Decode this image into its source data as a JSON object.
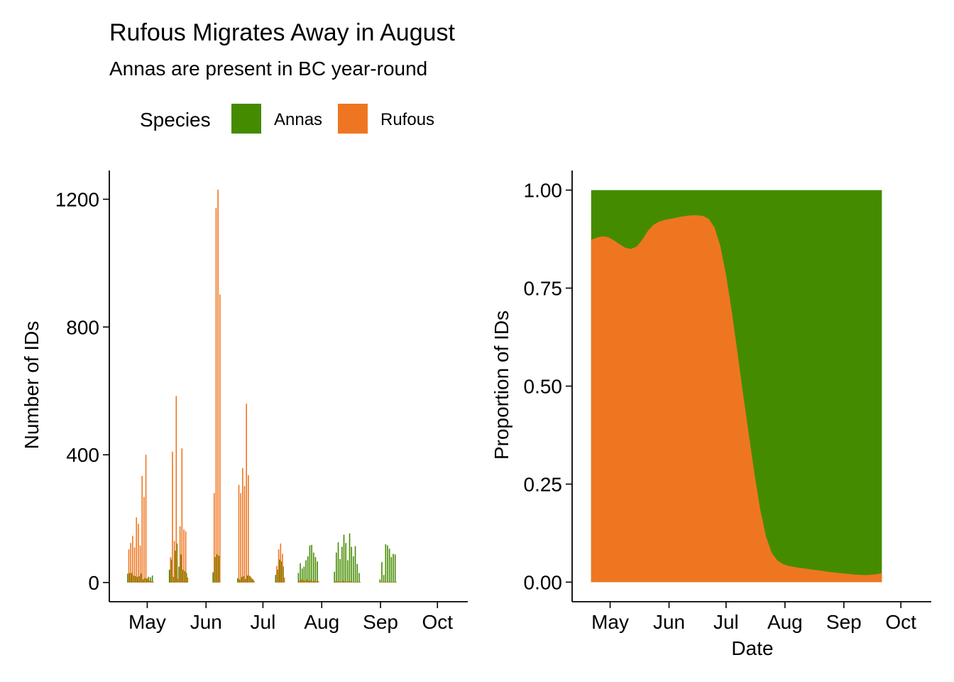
{
  "header": {
    "title": "Rufous Migrates Away in August",
    "subtitle": "Annas are present in BC year-round"
  },
  "legend": {
    "title": "Species",
    "items": [
      {
        "label": "Annas",
        "color": "#458B00"
      },
      {
        "label": "Rufous",
        "color": "#EE7621"
      }
    ]
  },
  "colors": {
    "annas": "#458B00",
    "rufous": "#EE7621",
    "axis": "#000000"
  },
  "chart_data": [
    {
      "type": "bar",
      "ylabel": "Number of IDs",
      "xlabel": "",
      "x_ticks": [
        "May",
        "Jun",
        "Jul",
        "Aug",
        "Sep",
        "Oct"
      ],
      "x_range": [
        "2023-04-11",
        "2023-10-17"
      ],
      "ylim": [
        -60,
        1290
      ],
      "y_ticks": [
        0,
        400,
        800,
        1200
      ],
      "grid": false,
      "legend": "top",
      "series": [
        {
          "name": "Annas",
          "points": [
            [
              "2023-04-21",
              28
            ],
            [
              "2023-04-22",
              30
            ],
            [
              "2023-04-23",
              30
            ],
            [
              "2023-04-24",
              22
            ],
            [
              "2023-04-25",
              20
            ],
            [
              "2023-04-26",
              18
            ],
            [
              "2023-04-27",
              20
            ],
            [
              "2023-04-28",
              28
            ],
            [
              "2023-04-29",
              10
            ],
            [
              "2023-04-30",
              14
            ],
            [
              "2023-05-01",
              12
            ],
            [
              "2023-05-02",
              18
            ],
            [
              "2023-05-03",
              16
            ],
            [
              "2023-05-04",
              22
            ],
            [
              "2023-05-13",
              40
            ],
            [
              "2023-05-14",
              72
            ],
            [
              "2023-05-15",
              18
            ],
            [
              "2023-05-16",
              100
            ],
            [
              "2023-05-17",
              122
            ],
            [
              "2023-05-18",
              50
            ],
            [
              "2023-05-19",
              88
            ],
            [
              "2023-05-20",
              40
            ],
            [
              "2023-05-21",
              36
            ],
            [
              "2023-05-22",
              30
            ],
            [
              "2023-06-05",
              32
            ],
            [
              "2023-06-06",
              80
            ],
            [
              "2023-06-07",
              88
            ],
            [
              "2023-06-08",
              84
            ],
            [
              "2023-06-18",
              14
            ],
            [
              "2023-06-19",
              10
            ],
            [
              "2023-06-20",
              18
            ],
            [
              "2023-06-21",
              20
            ],
            [
              "2023-06-22",
              12
            ],
            [
              "2023-06-23",
              22
            ],
            [
              "2023-06-24",
              22
            ],
            [
              "2023-06-25",
              16
            ],
            [
              "2023-06-26",
              10
            ],
            [
              "2023-07-08",
              24
            ],
            [
              "2023-07-09",
              40
            ],
            [
              "2023-07-10",
              72
            ],
            [
              "2023-07-11",
              66
            ],
            [
              "2023-07-12",
              50
            ],
            [
              "2023-07-20",
              30
            ],
            [
              "2023-07-21",
              60
            ],
            [
              "2023-07-22",
              44
            ],
            [
              "2023-07-23",
              50
            ],
            [
              "2023-07-24",
              70
            ],
            [
              "2023-07-25",
              82
            ],
            [
              "2023-07-26",
              116
            ],
            [
              "2023-07-27",
              118
            ],
            [
              "2023-07-28",
              94
            ],
            [
              "2023-07-29",
              80
            ],
            [
              "2023-07-30",
              66
            ],
            [
              "2023-08-08",
              34
            ],
            [
              "2023-08-09",
              94
            ],
            [
              "2023-08-10",
              126
            ],
            [
              "2023-08-11",
              74
            ],
            [
              "2023-08-12",
              112
            ],
            [
              "2023-08-13",
              150
            ],
            [
              "2023-08-14",
              124
            ],
            [
              "2023-08-15",
              70
            ],
            [
              "2023-08-16",
              154
            ],
            [
              "2023-08-17",
              112
            ],
            [
              "2023-08-18",
              82
            ],
            [
              "2023-08-19",
              114
            ],
            [
              "2023-08-20",
              58
            ],
            [
              "2023-08-21",
              30
            ],
            [
              "2023-09-01",
              10
            ],
            [
              "2023-09-02",
              64
            ],
            [
              "2023-09-03",
              24
            ],
            [
              "2023-09-04",
              120
            ],
            [
              "2023-09-05",
              116
            ],
            [
              "2023-09-06",
              106
            ],
            [
              "2023-09-07",
              80
            ],
            [
              "2023-09-08",
              90
            ],
            [
              "2023-09-09",
              88
            ]
          ]
        },
        {
          "name": "Rufous",
          "points": [
            [
              "2023-04-21",
              104
            ],
            [
              "2023-04-22",
              124
            ],
            [
              "2023-04-23",
              146
            ],
            [
              "2023-04-24",
              110
            ],
            [
              "2023-04-25",
              204
            ],
            [
              "2023-04-26",
              184
            ],
            [
              "2023-04-27",
              116
            ],
            [
              "2023-04-28",
              334
            ],
            [
              "2023-04-29",
              268
            ],
            [
              "2023-04-30",
              400
            ],
            [
              "2023-05-01",
              14
            ],
            [
              "2023-05-02",
              6
            ],
            [
              "2023-05-03",
              4
            ],
            [
              "2023-05-04",
              2
            ],
            [
              "2023-05-13",
              80
            ],
            [
              "2023-05-14",
              410
            ],
            [
              "2023-05-15",
              130
            ],
            [
              "2023-05-16",
              584
            ],
            [
              "2023-05-17",
              12
            ],
            [
              "2023-05-18",
              176
            ],
            [
              "2023-05-19",
              420
            ],
            [
              "2023-05-20",
              166
            ],
            [
              "2023-05-21",
              160
            ],
            [
              "2023-05-22",
              16
            ],
            [
              "2023-06-05",
              280
            ],
            [
              "2023-06-06",
              1172
            ],
            [
              "2023-06-07",
              1230
            ],
            [
              "2023-06-08",
              902
            ],
            [
              "2023-06-18",
              306
            ],
            [
              "2023-06-19",
              280
            ],
            [
              "2023-06-20",
              358
            ],
            [
              "2023-06-21",
              302
            ],
            [
              "2023-06-22",
              560
            ],
            [
              "2023-06-23",
              336
            ],
            [
              "2023-06-24",
              20
            ],
            [
              "2023-06-25",
              12
            ],
            [
              "2023-06-26",
              6
            ],
            [
              "2023-07-08",
              52
            ],
            [
              "2023-07-09",
              104
            ],
            [
              "2023-07-10",
              122
            ],
            [
              "2023-07-11",
              90
            ],
            [
              "2023-07-12",
              16
            ],
            [
              "2023-07-20",
              6
            ],
            [
              "2023-07-21",
              10
            ],
            [
              "2023-07-22",
              8
            ],
            [
              "2023-07-23",
              6
            ],
            [
              "2023-07-24",
              10
            ],
            [
              "2023-07-25",
              6
            ],
            [
              "2023-07-26",
              8
            ],
            [
              "2023-07-27",
              4
            ],
            [
              "2023-07-28",
              6
            ],
            [
              "2023-07-29",
              4
            ],
            [
              "2023-07-30",
              4
            ],
            [
              "2023-08-08",
              4
            ],
            [
              "2023-08-09",
              4
            ],
            [
              "2023-08-10",
              4
            ],
            [
              "2023-08-11",
              2
            ],
            [
              "2023-08-12",
              6
            ],
            [
              "2023-08-13",
              4
            ],
            [
              "2023-08-14",
              2
            ],
            [
              "2023-08-15",
              4
            ],
            [
              "2023-08-16",
              4
            ],
            [
              "2023-08-17",
              2
            ],
            [
              "2023-08-18",
              2
            ],
            [
              "2023-08-19",
              2
            ],
            [
              "2023-08-20",
              2
            ],
            [
              "2023-08-21",
              2
            ],
            [
              "2023-09-01",
              2
            ],
            [
              "2023-09-02",
              2
            ],
            [
              "2023-09-03",
              2
            ],
            [
              "2023-09-04",
              2
            ],
            [
              "2023-09-05",
              2
            ],
            [
              "2023-09-06",
              2
            ],
            [
              "2023-09-07",
              2
            ],
            [
              "2023-09-08",
              2
            ],
            [
              "2023-09-09",
              2
            ]
          ]
        }
      ]
    },
    {
      "type": "area",
      "ylabel": "Proportion of IDs",
      "xlabel": "Date",
      "x_ticks": [
        "May",
        "Jun",
        "Jul",
        "Aug",
        "Sep",
        "Oct"
      ],
      "x_range": [
        "2023-04-11",
        "2023-10-17"
      ],
      "ylim": [
        -0.05,
        1.05
      ],
      "y_ticks": [
        "0.00",
        "0.25",
        "0.50",
        "0.75",
        "1.00"
      ],
      "grid": false,
      "stacked": true,
      "series": [
        {
          "name": "Rufous",
          "points": [
            [
              "2023-04-21",
              0.873
            ],
            [
              "2023-04-24",
              0.879
            ],
            [
              "2023-04-27",
              0.882
            ],
            [
              "2023-04-30",
              0.88
            ],
            [
              "2023-05-03",
              0.872
            ],
            [
              "2023-05-06",
              0.862
            ],
            [
              "2023-05-09",
              0.853
            ],
            [
              "2023-05-12",
              0.85
            ],
            [
              "2023-05-15",
              0.856
            ],
            [
              "2023-05-18",
              0.874
            ],
            [
              "2023-05-21",
              0.897
            ],
            [
              "2023-05-24",
              0.912
            ],
            [
              "2023-05-27",
              0.92
            ],
            [
              "2023-05-30",
              0.924
            ],
            [
              "2023-06-03",
              0.928
            ],
            [
              "2023-06-07",
              0.932
            ],
            [
              "2023-06-11",
              0.935
            ],
            [
              "2023-06-15",
              0.936
            ],
            [
              "2023-06-19",
              0.934
            ],
            [
              "2023-06-22",
              0.926
            ],
            [
              "2023-06-25",
              0.904
            ],
            [
              "2023-06-28",
              0.857
            ],
            [
              "2023-07-01",
              0.784
            ],
            [
              "2023-07-04",
              0.691
            ],
            [
              "2023-07-07",
              0.586
            ],
            [
              "2023-07-10",
              0.479
            ],
            [
              "2023-07-13",
              0.376
            ],
            [
              "2023-07-16",
              0.275
            ],
            [
              "2023-07-19",
              0.185
            ],
            [
              "2023-07-22",
              0.117
            ],
            [
              "2023-07-25",
              0.075
            ],
            [
              "2023-07-28",
              0.055
            ],
            [
              "2023-07-31",
              0.046
            ],
            [
              "2023-08-03",
              0.041
            ],
            [
              "2023-08-08",
              0.037
            ],
            [
              "2023-08-14",
              0.033
            ],
            [
              "2023-08-20",
              0.029
            ],
            [
              "2023-08-26",
              0.025
            ],
            [
              "2023-09-01",
              0.022
            ],
            [
              "2023-09-07",
              0.019
            ],
            [
              "2023-09-13",
              0.018
            ],
            [
              "2023-09-18",
              0.02
            ],
            [
              "2023-09-21",
              0.023
            ]
          ]
        },
        {
          "name": "Annas",
          "note_fill": "remainder to 1.00"
        }
      ]
    }
  ]
}
